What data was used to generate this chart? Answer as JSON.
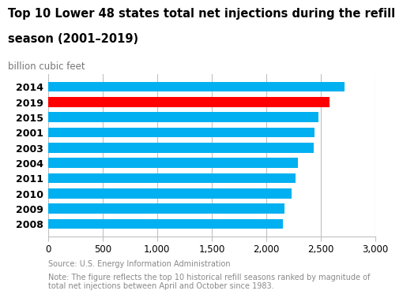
{
  "title_line1": "Top 10 Lower 48 states total net injections during the refill",
  "title_line2": "season (2001–2019)",
  "subtitle": "billion cubic feet",
  "categories": [
    "2014",
    "2019",
    "2015",
    "2001",
    "2003",
    "2004",
    "2011",
    "2010",
    "2009",
    "2008"
  ],
  "values": [
    2720,
    2580,
    2480,
    2440,
    2435,
    2290,
    2270,
    2230,
    2165,
    2155
  ],
  "bar_colors": [
    "#00b0f0",
    "#ff0000",
    "#00b0f0",
    "#00b0f0",
    "#00b0f0",
    "#00b0f0",
    "#00b0f0",
    "#00b0f0",
    "#00b0f0",
    "#00b0f0"
  ],
  "xlim": [
    0,
    3000
  ],
  "xticks": [
    0,
    500,
    1000,
    1500,
    2000,
    2500,
    3000
  ],
  "xtick_labels": [
    "0",
    "500",
    "1,000",
    "1,500",
    "2,000",
    "2,500",
    "3,000"
  ],
  "source_text": "Source: U.S. Energy Information Administration",
  "note_text": "Note: The figure reflects the top 10 historical refill seasons ranked by magnitude of\ntotal net injections between April and October since 1983.",
  "background_color": "#ffffff",
  "grid_color": "#c0c0c0",
  "bar_height": 0.65,
  "title_fontsize": 10.5,
  "subtitle_fontsize": 8.5,
  "tick_fontsize": 8.5,
  "label_fontsize": 9,
  "footer_fontsize": 7.0
}
